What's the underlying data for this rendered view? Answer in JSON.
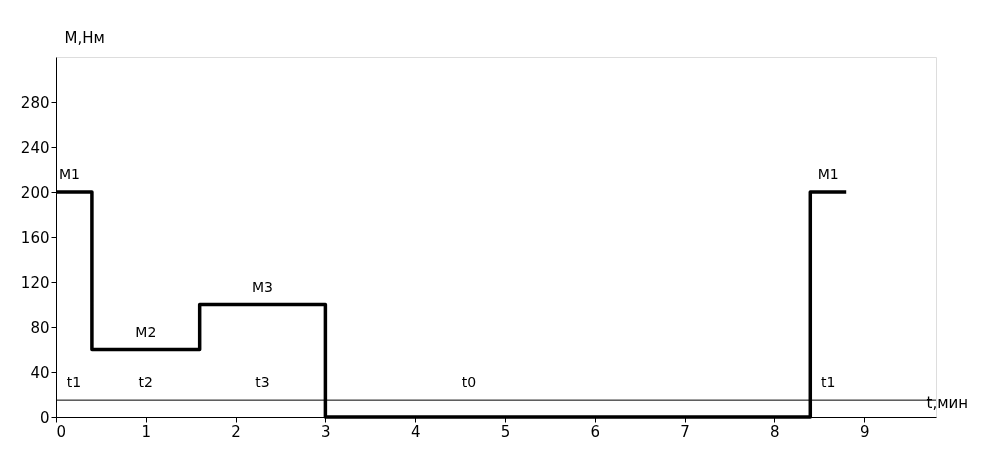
{
  "chart_data": {
    "type": "step",
    "xlabel": "t,мин",
    "ylabel": "M,Нм",
    "x": [
      0,
      0.4,
      1.6,
      3,
      8.4,
      8.8
    ],
    "series": [
      {
        "color": "#000000",
        "values": [
          200,
          60,
          100,
          0,
          200,
          200
        ]
      }
    ],
    "xlim": [
      0,
      9.8
    ],
    "ylim": [
      0,
      320
    ],
    "xticks": [
      0,
      1,
      2,
      3,
      4,
      5,
      6,
      7,
      8,
      9
    ],
    "yticks": [
      0,
      40,
      80,
      120,
      160,
      200,
      240,
      280
    ],
    "ref_lines": [
      {
        "axis": "y",
        "value": 15,
        "color": "#000000"
      }
    ],
    "annotations": [
      {
        "text": "M1",
        "x": 0.15,
        "y": 200
      },
      {
        "text": "M2",
        "x": 1.0,
        "y": 60
      },
      {
        "text": "M3",
        "x": 2.3,
        "y": 100
      },
      {
        "text": "M1",
        "x": 8.6,
        "y": 200
      },
      {
        "text": "t1",
        "x": 0.2,
        "y": 15
      },
      {
        "text": "t2",
        "x": 1.0,
        "y": 15
      },
      {
        "text": "t3",
        "x": 2.3,
        "y": 15
      },
      {
        "text": "t0",
        "x": 4.6,
        "y": 15
      },
      {
        "text": "t1",
        "x": 8.6,
        "y": 15
      }
    ]
  }
}
